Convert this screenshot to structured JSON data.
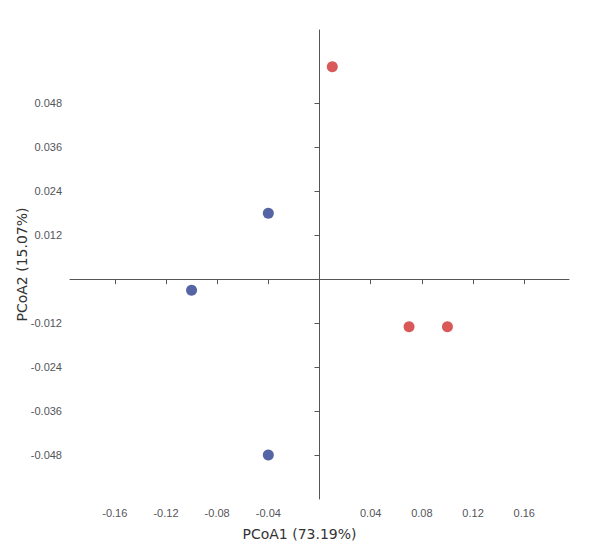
{
  "chart_data": {
    "type": "scatter",
    "xlabel": "PCoA1 (73.19%)",
    "ylabel": "PCoA2 (15.07%)",
    "series": [
      {
        "color": "#d03030",
        "marker": "circle",
        "x": [
          0.01,
          0.07,
          0.1
        ],
        "values": [
          0.058,
          -0.013,
          -0.013
        ]
      },
      {
        "color": "#2b3d8f",
        "marker": "circle",
        "x": [
          -0.04,
          -0.1,
          -0.04
        ],
        "values": [
          0.018,
          -0.003,
          -0.048
        ]
      }
    ],
    "xlim": [
      -0.195,
      0.195
    ],
    "ylim": [
      -0.06,
      0.068
    ],
    "xticks": [
      -0.16,
      -0.12,
      -0.08,
      -0.04,
      0.04,
      0.08,
      0.12,
      0.16
    ],
    "yticks": [
      -0.048,
      -0.036,
      -0.024,
      -0.012,
      0.012,
      0.024,
      0.036,
      0.048
    ],
    "grid": false
  }
}
